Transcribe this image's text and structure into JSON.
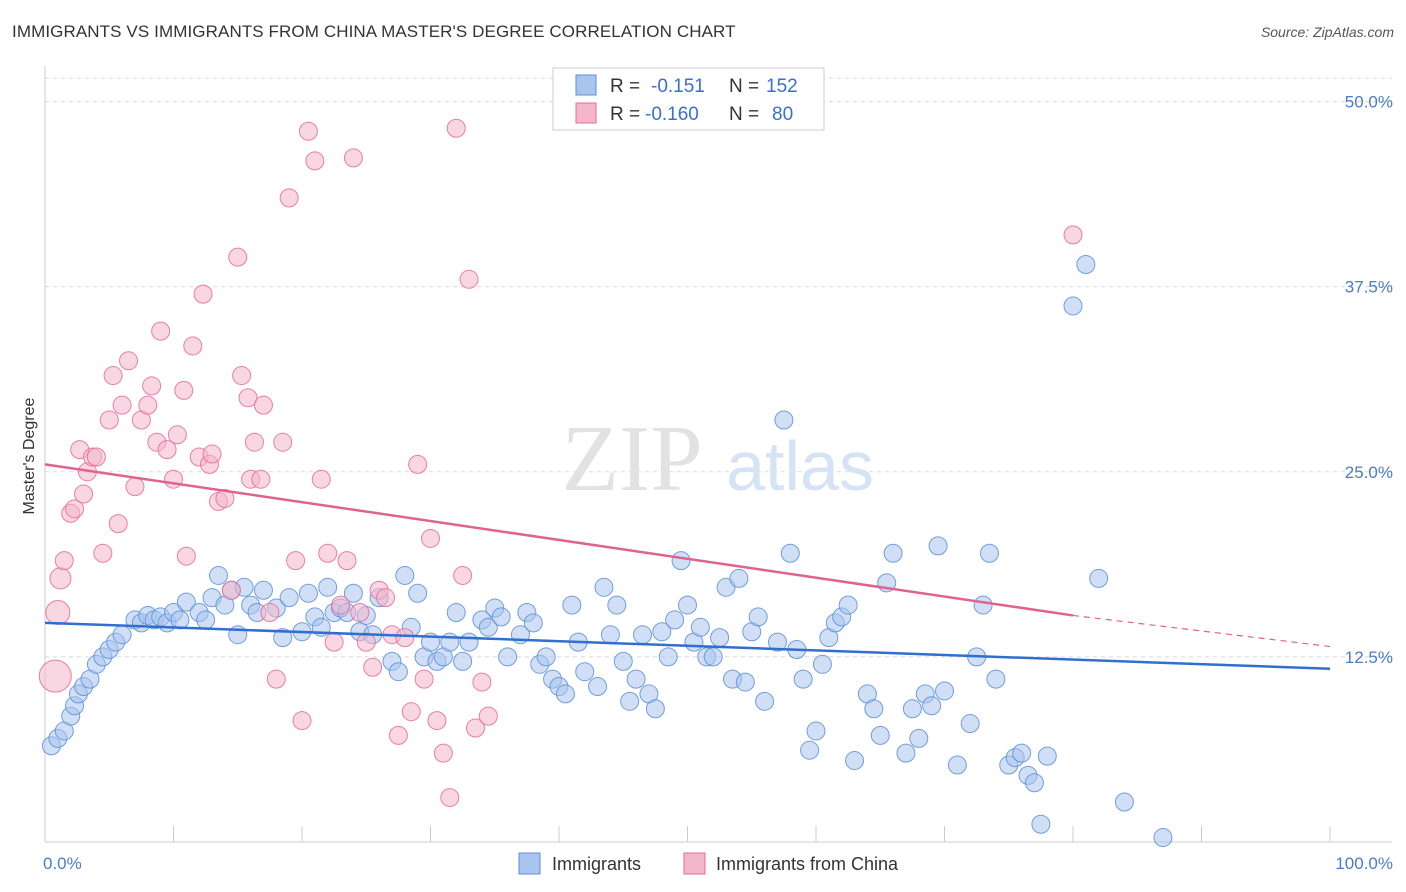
{
  "title": "IMMIGRANTS VS IMMIGRANTS FROM CHINA MASTER'S DEGREE CORRELATION CHART",
  "source": "Source: ZipAtlas.com",
  "watermark": {
    "zip": "ZIP",
    "atlas": "atlas"
  },
  "colors": {
    "blue": "#5b8fd9",
    "blue_fill": "#a9c5ee",
    "blue_line": "#2f6fce",
    "pink": "#e86a99",
    "pink_fill": "#f4b6cb",
    "pink_line": "#e0628f",
    "grid": "#d8d8d8",
    "axis_text": "#4a7cc9"
  },
  "legend": {
    "rows": [
      {
        "r_label": "R =",
        "r_value": "-0.151",
        "n_label": "N =",
        "n_value": "152"
      },
      {
        "r_label": "R =",
        "r_value": "-0.160",
        "n_label": "N =",
        "n_value": "80"
      }
    ]
  },
  "chart_data": {
    "type": "scatter",
    "xlabel": "",
    "ylabel": "Master's Degree",
    "xlim": [
      0,
      100
    ],
    "ylim": [
      0,
      52
    ],
    "x_tick_labels": [
      "0.0%",
      "100.0%"
    ],
    "y_ticks": [
      12.5,
      25.0,
      37.5,
      50.0
    ],
    "y_tick_labels": [
      "12.5%",
      "25.0%",
      "37.5%",
      "50.0%"
    ],
    "grid": true,
    "legend_position": "bottom",
    "series": [
      {
        "name": "Immigrants",
        "trend": [
          [
            0,
            14.8
          ],
          [
            100,
            11.7
          ]
        ],
        "points": [
          [
            0.5,
            6.5
          ],
          [
            1,
            7
          ],
          [
            1.5,
            7.5
          ],
          [
            2,
            8.5
          ],
          [
            2.3,
            9.2
          ],
          [
            2.6,
            10
          ],
          [
            3,
            10.5
          ],
          [
            3.5,
            11
          ],
          [
            4,
            12
          ],
          [
            4.5,
            12.5
          ],
          [
            5,
            13
          ],
          [
            5.5,
            13.5
          ],
          [
            6,
            14
          ],
          [
            7,
            15
          ],
          [
            7.5,
            14.8
          ],
          [
            8,
            15.3
          ],
          [
            8.5,
            15
          ],
          [
            9,
            15.2
          ],
          [
            9.5,
            14.8
          ],
          [
            10,
            15.5
          ],
          [
            10.5,
            15
          ],
          [
            11,
            16.2
          ],
          [
            12,
            15.5
          ],
          [
            12.5,
            15
          ],
          [
            13,
            16.5
          ],
          [
            13.5,
            18
          ],
          [
            14,
            16
          ],
          [
            14.5,
            17
          ],
          [
            15,
            14
          ],
          [
            15.5,
            17.2
          ],
          [
            16,
            16
          ],
          [
            16.5,
            15.5
          ],
          [
            17,
            17
          ],
          [
            18,
            15.8
          ],
          [
            18.5,
            13.8
          ],
          [
            19,
            16.5
          ],
          [
            20,
            14.2
          ],
          [
            20.5,
            16.8
          ],
          [
            21,
            15.2
          ],
          [
            21.5,
            14.5
          ],
          [
            22,
            17.2
          ],
          [
            22.5,
            15.5
          ],
          [
            23,
            15.8
          ],
          [
            23.5,
            15.5
          ],
          [
            24,
            16.8
          ],
          [
            24.5,
            14.2
          ],
          [
            25,
            15.3
          ],
          [
            25.5,
            14
          ],
          [
            26,
            16.5
          ],
          [
            27,
            12.2
          ],
          [
            27.5,
            11.5
          ],
          [
            28,
            18
          ],
          [
            28.5,
            14.5
          ],
          [
            29,
            16.8
          ],
          [
            29.5,
            12.5
          ],
          [
            30,
            13.5
          ],
          [
            30.5,
            12.2
          ],
          [
            31,
            12.5
          ],
          [
            31.5,
            13.5
          ],
          [
            32,
            15.5
          ],
          [
            32.5,
            12.2
          ],
          [
            33,
            13.5
          ],
          [
            34,
            15
          ],
          [
            34.5,
            14.5
          ],
          [
            35,
            15.8
          ],
          [
            35.5,
            15.2
          ],
          [
            36,
            12.5
          ],
          [
            37,
            14
          ],
          [
            37.5,
            15.5
          ],
          [
            38,
            14.8
          ],
          [
            38.5,
            12
          ],
          [
            39,
            12.5
          ],
          [
            39.5,
            11
          ],
          [
            40,
            10.5
          ],
          [
            40.5,
            10
          ],
          [
            41,
            16
          ],
          [
            41.5,
            13.5
          ],
          [
            42,
            11.5
          ],
          [
            43,
            10.5
          ],
          [
            43.5,
            17.2
          ],
          [
            44,
            14
          ],
          [
            44.5,
            16
          ],
          [
            45,
            12.2
          ],
          [
            45.5,
            9.5
          ],
          [
            46,
            11
          ],
          [
            46.5,
            14
          ],
          [
            47,
            10
          ],
          [
            47.5,
            9
          ],
          [
            48,
            14.2
          ],
          [
            48.5,
            12.5
          ],
          [
            49,
            15
          ],
          [
            49.5,
            19
          ],
          [
            50,
            16
          ],
          [
            50.5,
            13.5
          ],
          [
            51,
            14.5
          ],
          [
            51.5,
            12.5
          ],
          [
            52,
            12.5
          ],
          [
            52.5,
            13.8
          ],
          [
            53,
            17.2
          ],
          [
            53.5,
            11
          ],
          [
            54,
            17.8
          ],
          [
            54.5,
            10.8
          ],
          [
            55,
            14.2
          ],
          [
            55.5,
            15.2
          ],
          [
            56,
            9.5
          ],
          [
            57,
            13.5
          ],
          [
            57.5,
            28.5
          ],
          [
            58,
            19.5
          ],
          [
            58.5,
            13
          ],
          [
            59,
            11
          ],
          [
            59.5,
            6.2
          ],
          [
            60,
            7.5
          ],
          [
            60.5,
            12
          ],
          [
            61,
            13.8
          ],
          [
            61.5,
            14.8
          ],
          [
            62,
            15.2
          ],
          [
            62.5,
            16
          ],
          [
            63,
            5.5
          ],
          [
            64,
            10
          ],
          [
            64.5,
            9
          ],
          [
            65,
            7.2
          ],
          [
            65.5,
            17.5
          ],
          [
            66,
            19.5
          ],
          [
            67,
            6
          ],
          [
            67.5,
            9
          ],
          [
            68,
            7
          ],
          [
            68.5,
            10
          ],
          [
            69,
            9.2
          ],
          [
            69.5,
            20
          ],
          [
            70,
            10.2
          ],
          [
            71,
            5.2
          ],
          [
            72,
            8
          ],
          [
            72.5,
            12.5
          ],
          [
            73,
            16
          ],
          [
            73.5,
            19.5
          ],
          [
            74,
            11
          ],
          [
            75,
            5.2
          ],
          [
            75.5,
            5.7
          ],
          [
            76,
            6
          ],
          [
            76.5,
            4.5
          ],
          [
            77,
            4
          ],
          [
            77.5,
            1.2
          ],
          [
            78,
            5.8
          ],
          [
            80,
            36.2
          ],
          [
            81,
            39
          ],
          [
            82,
            17.8
          ],
          [
            84,
            2.7
          ],
          [
            87,
            0.3
          ]
        ]
      },
      {
        "name": "Immigrants from China",
        "trend": [
          [
            0,
            25.5
          ],
          [
            80,
            15.3
          ]
        ],
        "trend_dashed": [
          [
            80,
            15.3
          ],
          [
            100,
            13.2
          ]
        ],
        "points": [
          [
            0.8,
            11.2
          ],
          [
            1,
            15.5
          ],
          [
            1.2,
            17.8
          ],
          [
            1.5,
            19
          ],
          [
            2,
            22.2
          ],
          [
            2.3,
            22.5
          ],
          [
            2.7,
            26.5
          ],
          [
            3,
            23.5
          ],
          [
            3.3,
            25
          ],
          [
            3.7,
            26
          ],
          [
            4,
            26
          ],
          [
            4.5,
            19.5
          ],
          [
            5,
            28.5
          ],
          [
            5.3,
            31.5
          ],
          [
            5.7,
            21.5
          ],
          [
            6,
            29.5
          ],
          [
            6.5,
            32.5
          ],
          [
            7,
            24
          ],
          [
            7.5,
            28.5
          ],
          [
            8,
            29.5
          ],
          [
            8.3,
            30.8
          ],
          [
            8.7,
            27
          ],
          [
            9,
            34.5
          ],
          [
            9.5,
            26.5
          ],
          [
            10,
            24.5
          ],
          [
            10.3,
            27.5
          ],
          [
            10.8,
            30.5
          ],
          [
            11,
            19.3
          ],
          [
            11.5,
            33.5
          ],
          [
            12,
            26
          ],
          [
            12.3,
            37
          ],
          [
            12.8,
            25.5
          ],
          [
            13,
            26.2
          ],
          [
            13.5,
            23
          ],
          [
            14,
            23.2
          ],
          [
            14.5,
            17
          ],
          [
            15,
            39.5
          ],
          [
            15.3,
            31.5
          ],
          [
            15.8,
            30
          ],
          [
            16,
            24.5
          ],
          [
            16.3,
            27
          ],
          [
            16.8,
            24.5
          ],
          [
            17,
            29.5
          ],
          [
            17.5,
            15.5
          ],
          [
            18,
            11
          ],
          [
            18.5,
            27
          ],
          [
            19,
            43.5
          ],
          [
            19.5,
            19
          ],
          [
            20,
            8.2
          ],
          [
            20.5,
            48
          ],
          [
            21,
            46
          ],
          [
            21.5,
            24.5
          ],
          [
            22,
            19.5
          ],
          [
            22.5,
            13.5
          ],
          [
            23,
            16
          ],
          [
            23.5,
            19
          ],
          [
            24,
            46.2
          ],
          [
            24.5,
            15.5
          ],
          [
            25,
            13.5
          ],
          [
            25.5,
            11.8
          ],
          [
            26,
            17
          ],
          [
            26.5,
            16.5
          ],
          [
            27,
            14
          ],
          [
            27.5,
            7.2
          ],
          [
            28,
            13.8
          ],
          [
            28.5,
            8.8
          ],
          [
            29,
            25.5
          ],
          [
            29.5,
            11
          ],
          [
            30,
            20.5
          ],
          [
            30.5,
            8.2
          ],
          [
            31,
            6
          ],
          [
            31.5,
            3
          ],
          [
            32,
            48.2
          ],
          [
            32.5,
            18
          ],
          [
            33,
            38
          ],
          [
            33.5,
            7.7
          ],
          [
            34,
            10.8
          ],
          [
            34.5,
            8.5
          ],
          [
            80,
            41
          ]
        ]
      }
    ]
  },
  "bottom_legend": [
    {
      "label": "Immigrants"
    },
    {
      "label": "Immigrants from China"
    }
  ]
}
